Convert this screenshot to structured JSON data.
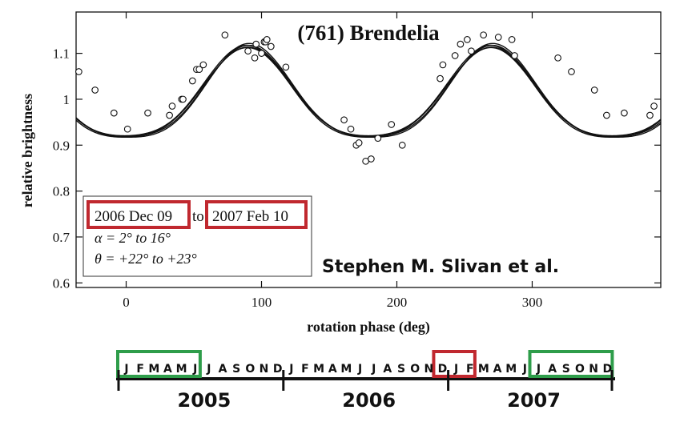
{
  "chart_data": {
    "type": "scatter",
    "title": "(761) Brendelia",
    "xlabel": "rotation phase (deg)",
    "ylabel": "relative brightness",
    "xlim": [
      -37,
      395
    ],
    "ylim": [
      0.59,
      1.19
    ],
    "xticks": [
      0,
      100,
      200,
      300
    ],
    "yticks": [
      0.6,
      0.7,
      0.8,
      0.9,
      1,
      1.1
    ],
    "ytick_labels": [
      "0.6",
      "0.7",
      "0.8",
      "0.9",
      "1",
      "1.1"
    ],
    "grid": false,
    "observations": {
      "x": [
        -35,
        -23,
        -9,
        1,
        16,
        32,
        34,
        41,
        42,
        49,
        52,
        54,
        57,
        73,
        90,
        95,
        96,
        100,
        102,
        103,
        104,
        107,
        118,
        161,
        166,
        170,
        172,
        177,
        181,
        186,
        196,
        204,
        232,
        234,
        243,
        247,
        252,
        255,
        264,
        275,
        285,
        287,
        319,
        329,
        346,
        355,
        368,
        387,
        390
      ],
      "y": [
        1.06,
        1.02,
        0.97,
        0.935,
        0.97,
        0.965,
        0.985,
        1.0,
        1.0,
        1.04,
        1.065,
        1.065,
        1.075,
        1.14,
        1.105,
        1.09,
        1.12,
        1.1,
        1.125,
        1.125,
        1.13,
        1.115,
        1.07,
        0.955,
        0.935,
        0.9,
        0.905,
        0.865,
        0.87,
        0.915,
        0.945,
        0.9,
        1.045,
        1.075,
        1.095,
        1.12,
        1.13,
        1.105,
        1.14,
        1.135,
        1.13,
        1.095,
        1.09,
        1.06,
        1.02,
        0.965,
        0.97,
        0.965,
        0.985
      ]
    },
    "fit_curves": {
      "amplitudes": [
        [
          0.098,
          0.0155
        ],
        [
          0.1,
          0.0175
        ],
        [
          0.102,
          0.0195
        ],
        [
          0.096,
          0.0165
        ],
        [
          0.099,
          0.0185
        ]
      ],
      "phase_offsets": [
        0,
        0.04,
        -0.04,
        0.02,
        -0.02
      ]
    },
    "annotation": {
      "start_date": "2006 Dec 09",
      "to_word": "to",
      "end_date": "2007 Feb 10",
      "alpha_line": "α = 2° to 16°",
      "theta_line": "θ = +22° to +23°"
    }
  },
  "credit": "Stephen M. Slivan et al.",
  "timeline": {
    "months": [
      "J",
      "F",
      "M",
      "A",
      "M",
      "J",
      "J",
      "A",
      "S",
      "O",
      "N",
      "D"
    ],
    "years": [
      "2005",
      "2006",
      "2007"
    ],
    "highlights": [
      {
        "kind": "green",
        "from": 0,
        "to": 5
      },
      {
        "kind": "red",
        "from": 23,
        "to": 25
      },
      {
        "kind": "green",
        "from": 30,
        "to": 35
      }
    ]
  },
  "colors": {
    "highlight_red": "#c0282f",
    "highlight_green": "#2e9d4a",
    "ink": "#111111"
  }
}
